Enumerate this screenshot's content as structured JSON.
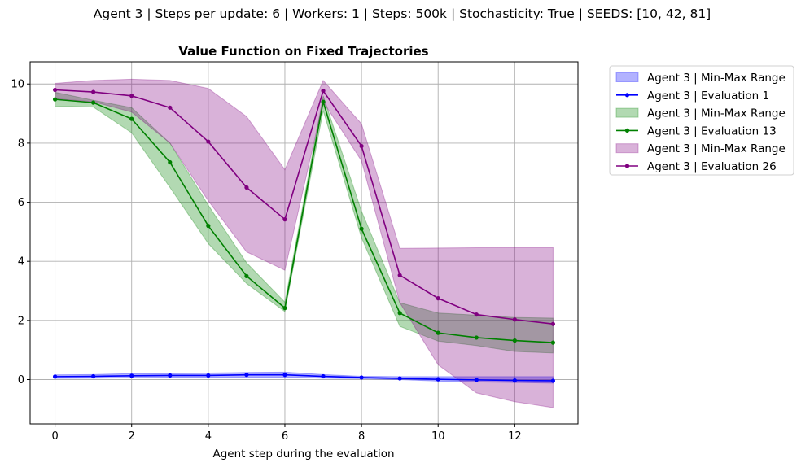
{
  "suptitle": "Agent 3 | Steps per update: 6 | Workers: 1 | Steps: 500k | Stochasticity: True | SEEDS: [10, 42, 81]",
  "chart_data": {
    "type": "line",
    "title": "Value Function on Fixed Trajectories",
    "xlabel": "Agent step during the evaluation",
    "ylabel": "",
    "xlim": [
      -0.65,
      13.65
    ],
    "ylim": [
      -1.5,
      10.75
    ],
    "xticks": [
      0,
      2,
      4,
      6,
      8,
      10,
      12
    ],
    "yticks": [
      0,
      2,
      4,
      6,
      8,
      10
    ],
    "grid": true,
    "legend_position": "outside-right",
    "x": [
      0,
      1,
      2,
      3,
      4,
      5,
      6,
      7,
      8,
      9,
      10,
      11,
      12,
      13
    ],
    "series": [
      {
        "name": "Agent 3 | Evaluation 1",
        "band_name": "Agent 3 | Min-Max Range",
        "color": "#0000ff",
        "band_color": "#0000ff",
        "values": [
          0.1,
          0.11,
          0.13,
          0.14,
          0.14,
          0.16,
          0.16,
          0.11,
          0.07,
          0.04,
          0.01,
          -0.01,
          -0.03,
          -0.04
        ],
        "min": [
          0.04,
          0.05,
          0.06,
          0.07,
          0.07,
          0.08,
          0.08,
          0.05,
          0.03,
          0.0,
          -0.05,
          -0.08,
          -0.1,
          -0.12
        ],
        "max": [
          0.16,
          0.17,
          0.2,
          0.21,
          0.22,
          0.24,
          0.25,
          0.17,
          0.11,
          0.1,
          0.1,
          0.1,
          0.1,
          0.1
        ]
      },
      {
        "name": "Agent 3 | Evaluation 13",
        "band_name": "Agent 3 | Min-Max Range",
        "color": "#008000",
        "band_color": "#008000",
        "values": [
          9.48,
          9.37,
          8.82,
          7.35,
          5.2,
          3.5,
          2.42,
          9.4,
          5.1,
          2.25,
          1.58,
          1.42,
          1.32,
          1.25
        ],
        "min": [
          9.25,
          9.22,
          8.35,
          6.5,
          4.6,
          3.25,
          2.3,
          9.1,
          4.8,
          1.8,
          1.3,
          1.15,
          0.95,
          0.9
        ],
        "max": [
          9.72,
          9.45,
          9.2,
          8.0,
          5.9,
          3.95,
          2.62,
          9.6,
          5.7,
          2.6,
          2.25,
          2.18,
          2.1,
          2.08
        ]
      },
      {
        "name": "Agent 3 | Evaluation 26",
        "band_name": "Agent 3 | Min-Max Range",
        "color": "#800080",
        "band_color": "#800080",
        "values": [
          9.8,
          9.73,
          9.6,
          9.2,
          8.05,
          6.5,
          5.42,
          9.77,
          7.9,
          3.53,
          2.75,
          2.2,
          2.03,
          1.88
        ],
        "min": [
          9.5,
          9.4,
          9.05,
          8.0,
          6.05,
          4.32,
          3.7,
          9.4,
          7.4,
          2.6,
          0.5,
          -0.45,
          -0.75,
          -0.95
        ],
        "max": [
          10.02,
          10.12,
          10.16,
          10.12,
          9.85,
          8.9,
          7.1,
          10.12,
          8.65,
          4.44,
          4.45,
          4.46,
          4.47,
          4.47
        ]
      }
    ]
  }
}
